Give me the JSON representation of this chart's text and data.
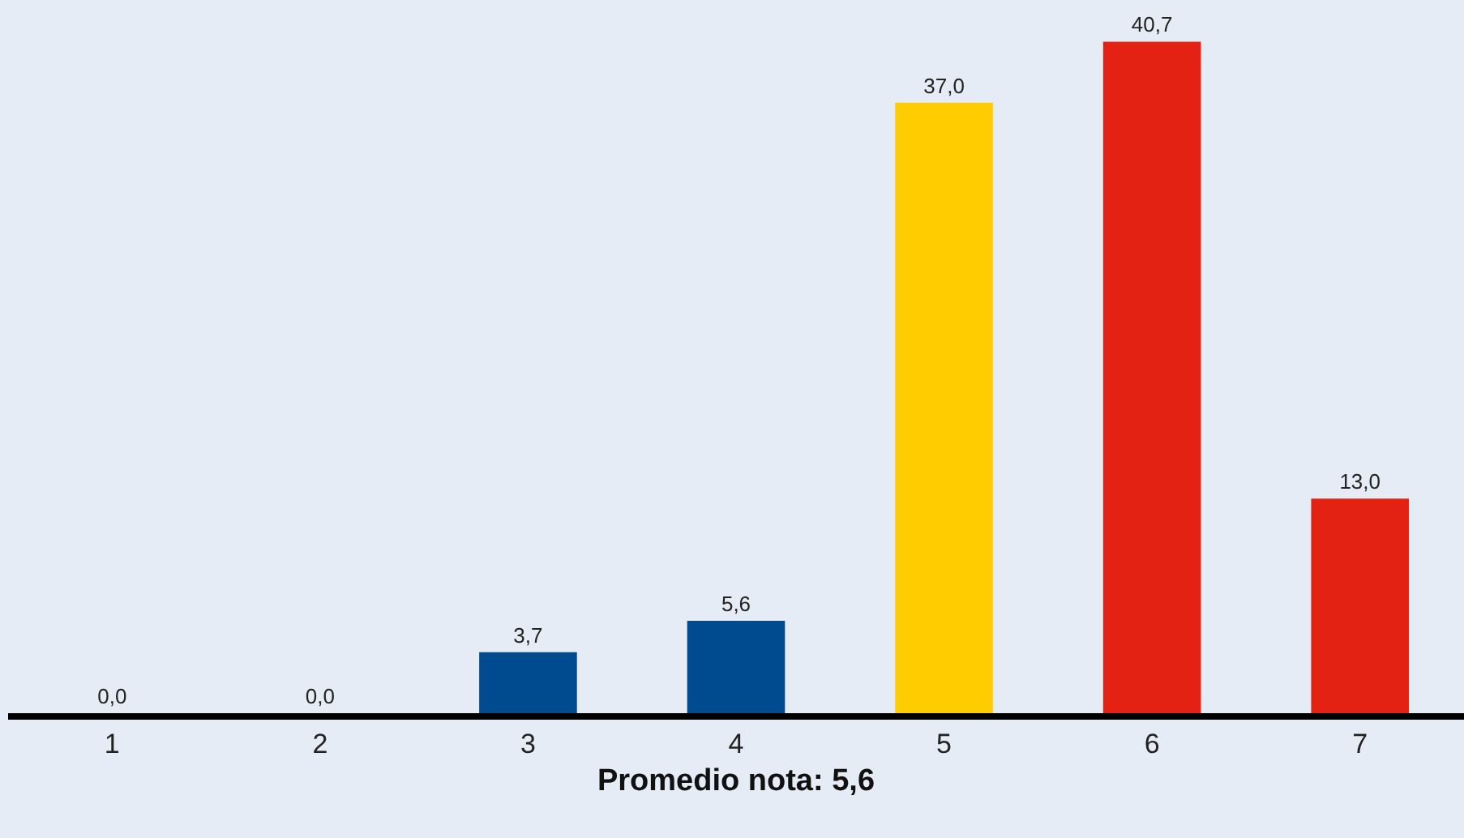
{
  "chart_data": {
    "type": "bar",
    "categories": [
      "1",
      "2",
      "3",
      "4",
      "5",
      "6",
      "7"
    ],
    "values": [
      0.0,
      0.0,
      3.7,
      5.6,
      37.0,
      40.7,
      13.0
    ],
    "colors": [
      "#004a8f",
      "#004a8f",
      "#004a8f",
      "#004a8f",
      "#ffcc00",
      "#e32213",
      "#e32213"
    ],
    "value_labels": [
      "0,0",
      "0,0",
      "3,7",
      "5,6",
      "37,0",
      "40,7",
      "13,0"
    ],
    "xlabel": "Promedio nota: 5,6",
    "tick_labels": "x"
  }
}
